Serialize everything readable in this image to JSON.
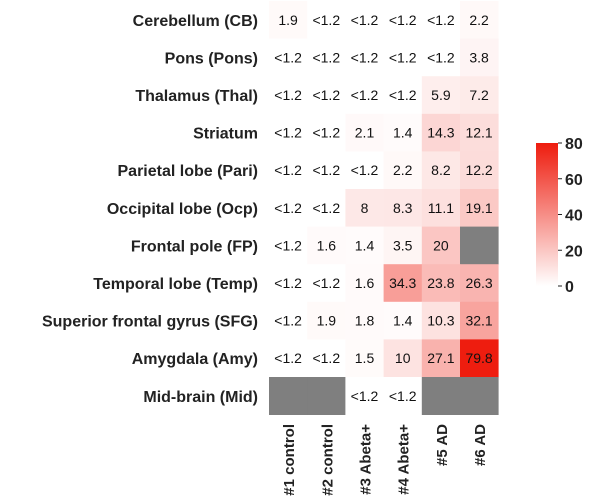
{
  "chart_data": {
    "type": "heatmap",
    "rows": [
      "Cerebellum (CB)",
      "Pons (Pons)",
      "Thalamus (Thal)",
      "Striatum",
      "Parietal lobe (Pari)",
      "Occipital lobe (Ocp)",
      "Frontal pole (FP)",
      "Temporal lobe (Temp)",
      "Superior frontal gyrus (SFG)",
      "Amygdala (Amy)",
      "Mid-brain (Mid)"
    ],
    "columns": [
      "#1 control",
      "#2 control",
      "#3 Abeta+",
      "#4 Abeta+",
      "#5 AD",
      "#6 AD"
    ],
    "values": [
      [
        1.9,
        null,
        null,
        null,
        null,
        2.2
      ],
      [
        null,
        null,
        null,
        null,
        null,
        3.8
      ],
      [
        null,
        null,
        null,
        null,
        5.9,
        7.2
      ],
      [
        null,
        null,
        2.1,
        1.4,
        14.3,
        12.1
      ],
      [
        null,
        null,
        null,
        2.2,
        8.2,
        12.2
      ],
      [
        null,
        null,
        8,
        8.3,
        11.1,
        19.1
      ],
      [
        null,
        1.6,
        1.4,
        3.5,
        20,
        null
      ],
      [
        null,
        null,
        1.6,
        34.3,
        23.8,
        26.3
      ],
      [
        null,
        1.9,
        1.8,
        1.4,
        10.3,
        32.1
      ],
      [
        null,
        null,
        1.5,
        10,
        27.1,
        79.8
      ],
      [
        null,
        null,
        null,
        null,
        null,
        null
      ]
    ],
    "labels": [
      [
        "1.9",
        "<1.2",
        "<1.2",
        "<1.2",
        "<1.2",
        "2.2"
      ],
      [
        "<1.2",
        "<1.2",
        "<1.2",
        "<1.2",
        "<1.2",
        "3.8"
      ],
      [
        "<1.2",
        "<1.2",
        "<1.2",
        "<1.2",
        "5.9",
        "7.2"
      ],
      [
        "<1.2",
        "<1.2",
        "2.1",
        "1.4",
        "14.3",
        "12.1"
      ],
      [
        "<1.2",
        "<1.2",
        "<1.2",
        "2.2",
        "8.2",
        "12.2"
      ],
      [
        "<1.2",
        "<1.2",
        "8",
        "8.3",
        "11.1",
        "19.1"
      ],
      [
        "<1.2",
        "1.6",
        "1.4",
        "3.5",
        "20",
        ""
      ],
      [
        "<1.2",
        "<1.2",
        "1.6",
        "34.3",
        "23.8",
        "26.3"
      ],
      [
        "<1.2",
        "1.9",
        "1.8",
        "1.4",
        "10.3",
        "32.1"
      ],
      [
        "<1.2",
        "<1.2",
        "1.5",
        "10",
        "27.1",
        "79.8"
      ],
      [
        "",
        "",
        "<1.2",
        "<1.2",
        "",
        ""
      ]
    ],
    "missing": [
      [
        6,
        5
      ],
      [
        10,
        0
      ],
      [
        10,
        1
      ],
      [
        10,
        4
      ],
      [
        10,
        5
      ]
    ],
    "below_limit": 1.2,
    "color_scale": {
      "min": 0,
      "max": 80,
      "low_color": "#ffffff",
      "high_color": "#ee1c0e",
      "missing_color": "#7f7f7f"
    },
    "legend": {
      "ticks": [
        80,
        60,
        40,
        20,
        0
      ],
      "placement": "right"
    },
    "grid": false
  }
}
